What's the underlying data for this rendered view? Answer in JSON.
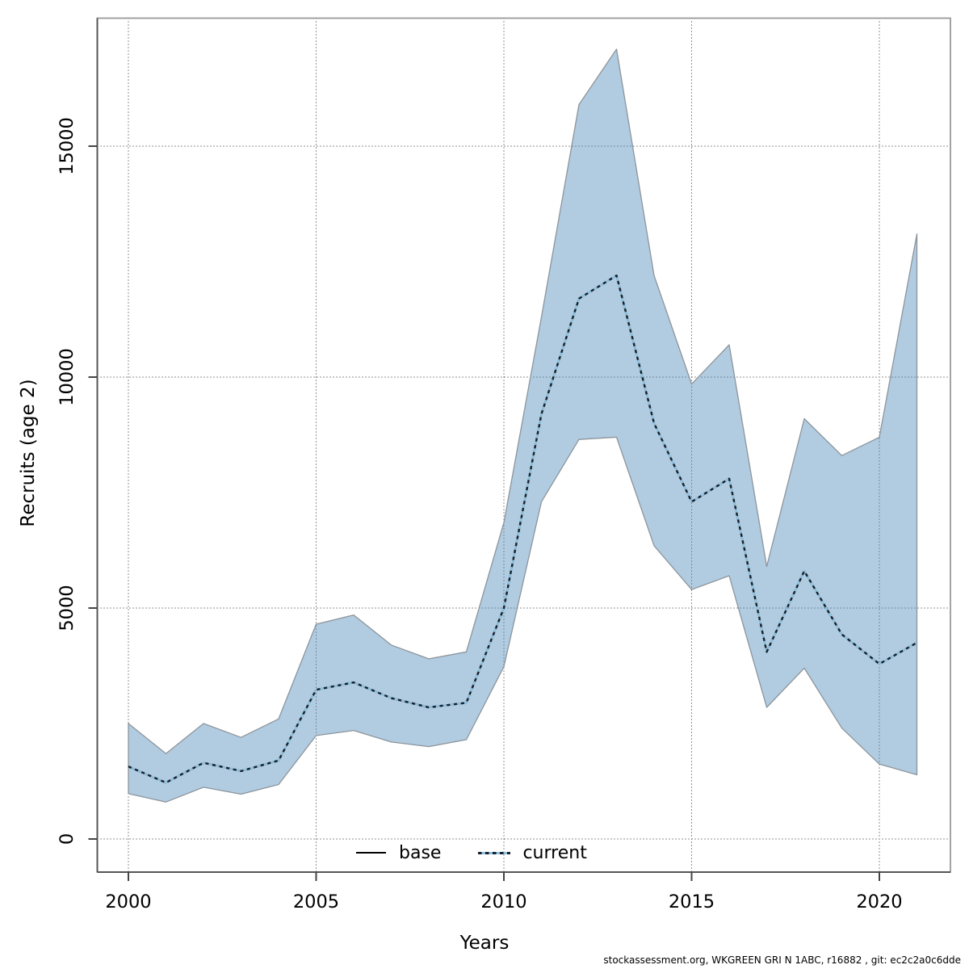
{
  "axes": {
    "x_title": "Years",
    "y_title": "Recruits (age 2)"
  },
  "legend": {
    "base_label": "base",
    "current_label": "current"
  },
  "footer_text": "stockassessment.org, WKGREEN GRI N 1ABC, r16882 , git: ec2c2a0c6dde",
  "colors": {
    "band_fill": "#a9c7d8",
    "band_fill_rgba": "rgba(70,130,180,0.42)",
    "band_edge": "#8c959c",
    "base_line": "#000000",
    "current_light": "#8cc0de",
    "current_dark": "#16222e",
    "grid": "#000000",
    "panel_border": "#999999",
    "axis_line": "#555555",
    "tick": "#444444",
    "text": "#000000"
  },
  "chart_data": {
    "type": "line",
    "title": "",
    "xlabel": "Years",
    "ylabel": "Recruits (age 2)",
    "grid": "dotted",
    "legend_position": "bottom-inside",
    "xlim": [
      1999.2,
      2021.9
    ],
    "ylim": [
      0,
      17500
    ],
    "x_ticks": [
      2000,
      2005,
      2010,
      2015,
      2020
    ],
    "x_tick_labels": [
      "2000",
      "2005",
      "2010",
      "2015",
      "2020"
    ],
    "y_ticks": [
      0,
      5000,
      10000,
      15000
    ],
    "y_tick_labels": [
      "0",
      "5000",
      "10000",
      "15000"
    ],
    "x": [
      2000,
      2001,
      2002,
      2003,
      2004,
      2005,
      2006,
      2007,
      2008,
      2009,
      2010,
      2011,
      2012,
      2013,
      2014,
      2015,
      2016,
      2017,
      2018,
      2019,
      2020,
      2021
    ],
    "series": [
      {
        "name": "base",
        "style": "solid-black",
        "values": [
          1570,
          1220,
          1650,
          1470,
          1700,
          3230,
          3390,
          3050,
          2850,
          2950,
          5000,
          9200,
          11700,
          12200,
          9000,
          7300,
          7800,
          4050,
          5800,
          4430,
          3790,
          4250
        ]
      },
      {
        "name": "current",
        "style": "dotted-blue",
        "values": [
          1570,
          1220,
          1650,
          1470,
          1700,
          3230,
          3390,
          3050,
          2850,
          2950,
          5000,
          9200,
          11700,
          12200,
          9000,
          7300,
          7800,
          4050,
          5800,
          4430,
          3790,
          4250
        ],
        "lower": [
          980,
          800,
          1120,
          970,
          1180,
          2240,
          2350,
          2100,
          2000,
          2150,
          3730,
          7300,
          8650,
          8700,
          6350,
          5400,
          5700,
          2850,
          3700,
          2400,
          1620,
          1390
        ],
        "upper": [
          2500,
          1850,
          2500,
          2200,
          2600,
          4650,
          4850,
          4200,
          3900,
          4050,
          6850,
          11300,
          15900,
          17100,
          12200,
          9850,
          10700,
          5900,
          9100,
          8300,
          8700,
          13100
        ]
      }
    ]
  }
}
